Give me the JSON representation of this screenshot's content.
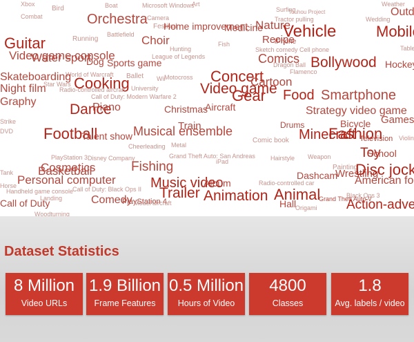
{
  "word_cloud": {
    "words": [
      {
        "t": "Xbox",
        "c": "l"
      },
      {
        "t": "Bird",
        "c": "l"
      },
      {
        "t": "Boat",
        "c": "l"
      },
      {
        "t": "Microsoft Windows",
        "c": "l"
      },
      {
        "t": "Art",
        "c": "l"
      },
      {
        "t": "Surfing",
        "c": "l"
      },
      {
        "t": "Touhou Project",
        "c": "l"
      },
      {
        "t": "Weather",
        "c": "l"
      },
      {
        "t": "Outdo",
        "c": "m"
      },
      {
        "t": "Combat",
        "c": "l"
      },
      {
        "t": "Orchestra",
        "c": "m"
      },
      {
        "t": "Camera",
        "c": "l"
      },
      {
        "t": "Tractor pulling",
        "c": "l"
      },
      {
        "t": "Wedding",
        "c": "l"
      },
      {
        "t": "Festival",
        "c": "l"
      },
      {
        "t": "Home improvement",
        "c": "m"
      },
      {
        "t": "Medicine",
        "c": "m"
      },
      {
        "t": "Nature",
        "c": "m"
      },
      {
        "t": "Vehicle",
        "c": "d"
      },
      {
        "t": "Mobile",
        "c": "d"
      },
      {
        "t": "Guitar",
        "c": "d"
      },
      {
        "t": "Running",
        "c": "l"
      },
      {
        "t": "Battlefield",
        "c": "l"
      },
      {
        "t": "Choir",
        "c": "m"
      },
      {
        "t": "Fish",
        "c": "l"
      },
      {
        "t": "Recipe",
        "c": "m"
      },
      {
        "t": "iPhone",
        "c": "m"
      },
      {
        "t": "Table",
        "c": "l"
      },
      {
        "t": "Video game console",
        "c": "m"
      },
      {
        "t": "Water sport",
        "c": "m"
      },
      {
        "t": "Hunting",
        "c": "l"
      },
      {
        "t": "Sketch comedy",
        "c": "l"
      },
      {
        "t": "Cell phone",
        "c": "l"
      },
      {
        "t": "Dog",
        "c": "m"
      },
      {
        "t": "Sports game",
        "c": "m"
      },
      {
        "t": "League of Legends",
        "c": "l"
      },
      {
        "t": "Comics",
        "c": "m"
      },
      {
        "t": "Bollywood",
        "c": "d"
      },
      {
        "t": "Hockey",
        "c": "m"
      },
      {
        "t": "Dragon Ball",
        "c": "l"
      },
      {
        "t": "Flamenco",
        "c": "l"
      },
      {
        "t": "World of Warcraft",
        "c": "l"
      },
      {
        "t": "Ballet",
        "c": "l"
      },
      {
        "t": "Skateboarding",
        "c": "m"
      },
      {
        "t": "Concert",
        "c": "d"
      },
      {
        "t": "Cooking",
        "c": "d"
      },
      {
        "t": "Cartoon",
        "c": "m"
      },
      {
        "t": "Star Wars",
        "c": "l"
      },
      {
        "t": "Wii",
        "c": "l"
      },
      {
        "t": "Motocross",
        "c": "l"
      },
      {
        "t": "Night film",
        "c": "m"
      },
      {
        "t": "University",
        "c": "l"
      },
      {
        "t": "Video game",
        "c": "d"
      },
      {
        "t": "Gear",
        "c": "d"
      },
      {
        "t": "Food",
        "c": "d"
      },
      {
        "t": "Smartphone",
        "c": "m"
      },
      {
        "t": "Radio-controlled aircraft",
        "c": "l"
      },
      {
        "t": "Call of Duty: Modern Warfare 2",
        "c": "l"
      },
      {
        "t": "Graphy",
        "c": "m"
      },
      {
        "t": "Christmas",
        "c": "m"
      },
      {
        "t": "Aircraft",
        "c": "m"
      },
      {
        "t": "Dance",
        "c": "d"
      },
      {
        "t": "Piano",
        "c": "m"
      },
      {
        "t": "Strategy video game",
        "c": "m"
      },
      {
        "t": "Games",
        "c": "m"
      },
      {
        "t": "Bicycle",
        "c": "m"
      },
      {
        "t": "Train",
        "c": "m"
      },
      {
        "t": "Drums",
        "c": "m"
      },
      {
        "t": "Minecraft",
        "c": "d"
      },
      {
        "t": "Fashion",
        "c": "d"
      },
      {
        "t": "Television",
        "c": "m"
      },
      {
        "t": "Football",
        "c": "d"
      },
      {
        "t": "Musical ensemble",
        "c": "m"
      },
      {
        "t": "Talent show",
        "c": "m"
      },
      {
        "t": "Comic book",
        "c": "l"
      },
      {
        "t": "Cheerleading",
        "c": "l"
      },
      {
        "t": "Metal",
        "c": "l"
      },
      {
        "t": "Toy",
        "c": "d"
      },
      {
        "t": "Violin",
        "c": "l"
      },
      {
        "t": "School",
        "c": "m"
      },
      {
        "t": "PlayStation 3",
        "c": "l"
      },
      {
        "t": "Disney Company",
        "c": "l"
      },
      {
        "t": "Grand Theft Auto: San Andreas",
        "c": "l"
      },
      {
        "t": "Hairstyle",
        "c": "l"
      },
      {
        "t": "Weapon",
        "c": "l"
      },
      {
        "t": "Cosmetics",
        "c": "m"
      },
      {
        "t": "iPad",
        "c": "l"
      },
      {
        "t": "Painting",
        "c": "l"
      },
      {
        "t": "Wrestling",
        "c": "m"
      },
      {
        "t": "Disc jockey",
        "c": "d"
      },
      {
        "t": "Basketball",
        "c": "m"
      },
      {
        "t": "Fishing",
        "c": "m"
      },
      {
        "t": "Dashcam",
        "c": "m"
      },
      {
        "t": "American football",
        "c": "m"
      },
      {
        "t": "Personal computer",
        "c": "m"
      },
      {
        "t": "Music video",
        "c": "d"
      },
      {
        "t": "Album",
        "c": "m"
      },
      {
        "t": "Radio-controlled car",
        "c": "l"
      },
      {
        "t": "Call of Duty: Black Ops II",
        "c": "l"
      },
      {
        "t": "Trailer",
        "c": "d"
      },
      {
        "t": "Animation",
        "c": "d"
      },
      {
        "t": "Animal",
        "c": "d"
      },
      {
        "t": "Grand Theft Auto V",
        "c": "m"
      },
      {
        "t": "Black Ops 3",
        "c": "l"
      },
      {
        "t": "Call of Duty",
        "c": "m"
      },
      {
        "t": "Comedy",
        "c": "m"
      },
      {
        "t": "PlayStation 4",
        "c": "m"
      },
      {
        "t": "Hall",
        "c": "m"
      },
      {
        "t": "Origami",
        "c": "l"
      },
      {
        "t": "Action-adventure",
        "c": "d"
      },
      {
        "t": "Model aircraft",
        "c": "l"
      },
      {
        "t": "Woodturning",
        "c": "l"
      },
      {
        "t": "Landing",
        "c": "l"
      },
      {
        "t": "Handheld game console",
        "c": "l"
      },
      {
        "t": "Tank",
        "c": "l"
      },
      {
        "t": "Horse",
        "c": "l"
      },
      {
        "t": "DVD",
        "c": "l"
      },
      {
        "t": "Strike",
        "c": "l"
      }
    ]
  },
  "stats": {
    "title": "Dataset Statistics",
    "items": [
      {
        "value": "8 Million",
        "label": "Video URLs"
      },
      {
        "value": "1.9 Billion",
        "label": "Frame Features"
      },
      {
        "value": "0.5 Million",
        "label": "Hours of Video"
      },
      {
        "value": "4800",
        "label": "Classes"
      },
      {
        "value": "1.8",
        "label": "Avg. labels / video"
      }
    ]
  },
  "colors": {
    "light": "#c7948e",
    "mid": "#b4473d",
    "dark": "#b22418",
    "accent": "#cb3a2d",
    "heading": "#c0392b"
  }
}
